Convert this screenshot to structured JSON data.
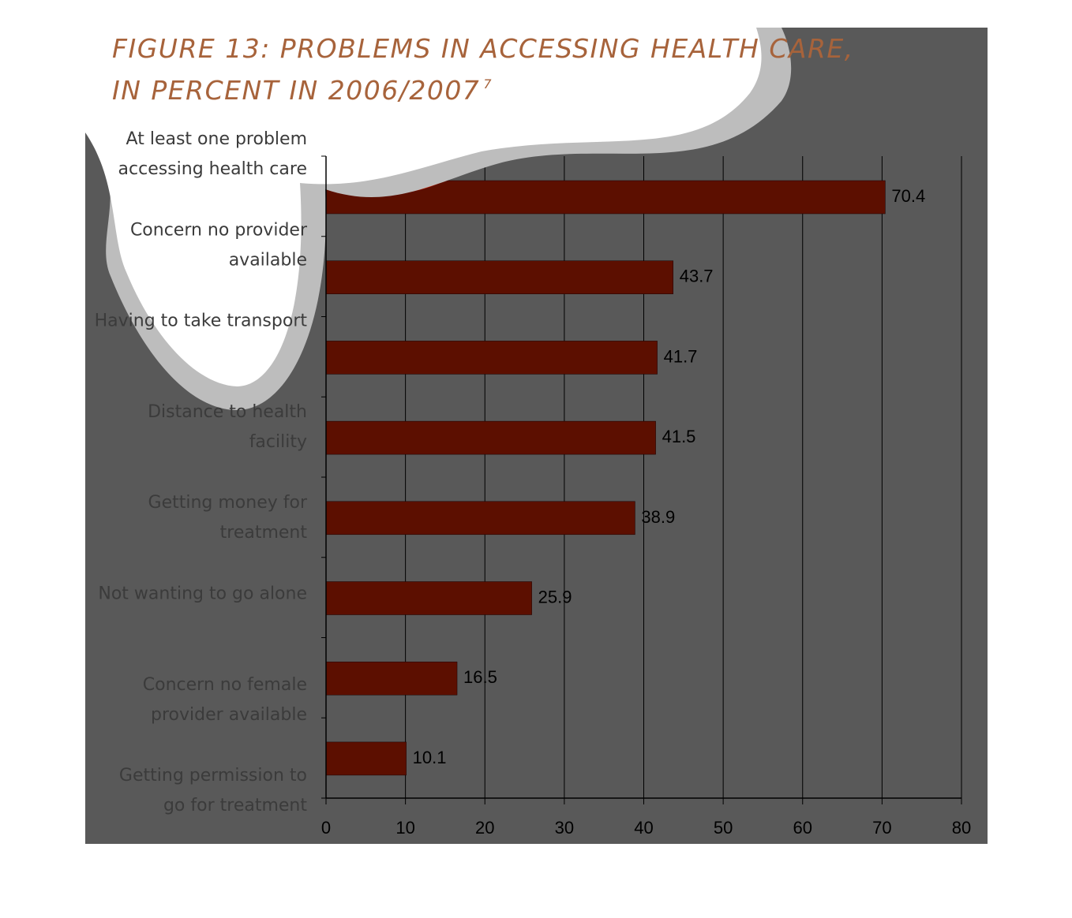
{
  "figure": {
    "title_line1": "FIGURE 13:  PROBLEMS IN ACCESSING HEALTH CARE,",
    "title_line2": "IN PERCENT  IN 2006/2007",
    "footnote_marker": "7"
  },
  "colors": {
    "panel_background": "#595959",
    "bar": "#5c0f00",
    "first_bar_highlight": "#c41e06",
    "swoosh_outer": "#bdbdbd",
    "swoosh_inner": "#ffffff",
    "title": "#a7633b"
  },
  "chart_data": {
    "type": "bar",
    "orientation": "horizontal",
    "categories": [
      [
        "At least one problem",
        "accessing health care"
      ],
      [
        "Concern no provider",
        "available"
      ],
      [
        "Having to take transport"
      ],
      [
        "Distance to health",
        "facility"
      ],
      [
        "Getting money for",
        "treatment"
      ],
      [
        "Not wanting to go alone"
      ],
      [
        "Concern no female",
        "provider available"
      ],
      [
        "Getting permission to",
        "go for treatment"
      ]
    ],
    "values": [
      70.4,
      43.7,
      41.7,
      41.5,
      38.9,
      25.9,
      16.5,
      10.1
    ],
    "value_labels": [
      "70.4",
      "43.7",
      "41.7",
      "41.5",
      "38.9",
      "25.9",
      "16.5",
      "10.1"
    ],
    "xlim": [
      0,
      80
    ],
    "x_ticks": [
      0,
      10,
      20,
      30,
      40,
      50,
      60,
      70,
      80
    ],
    "gridlines": true,
    "legend": false
  }
}
